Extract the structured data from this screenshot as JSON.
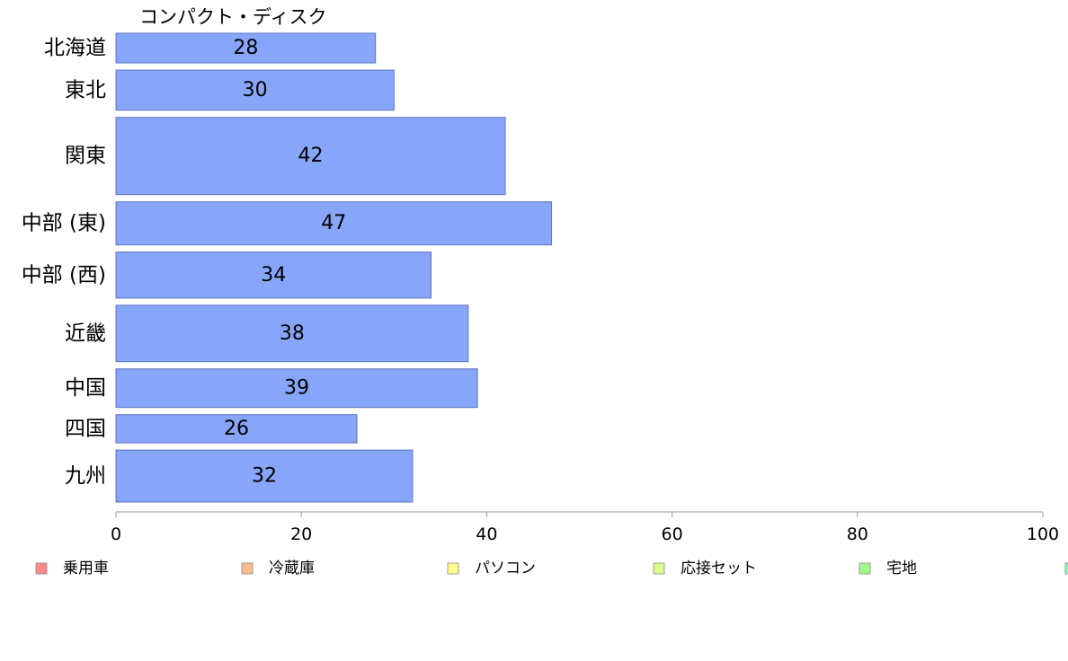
{
  "chart_data": {
    "type": "bar",
    "orientation": "horizontal",
    "title": "コンパクト・ディスク",
    "categories": [
      "北海道",
      "東北",
      "関東",
      "中部 (東)",
      "中部 (西)",
      "近畿",
      "中国",
      "四国",
      "九州"
    ],
    "series": [
      {
        "name": "コンパクト・ディスク",
        "values": [
          28,
          30,
          42,
          47,
          34,
          38,
          39,
          26,
          32
        ],
        "color": "#87a6fa",
        "border_color": "#5e74c0"
      }
    ],
    "band_weights": [
      1,
      1.35,
      2.6,
      1.45,
      1.55,
      1.9,
      1.3,
      0.95,
      1.75
    ],
    "data_labels": [
      "28",
      "30",
      "42",
      "47",
      "34",
      "38",
      "39",
      "26",
      "32"
    ],
    "xlim": [
      0,
      100
    ],
    "xticks": [
      "0",
      "20",
      "40",
      "60",
      "80",
      "100"
    ],
    "grid": false,
    "legend": {
      "placement": "bottom",
      "items": [
        {
          "label": "乗用車",
          "color": "#ff8a8a"
        },
        {
          "label": "冷蔵庫",
          "color": "#ffbb8a"
        },
        {
          "label": "パソコン",
          "color": "#ffff8a"
        },
        {
          "label": "応接セット",
          "color": "#dcff8a"
        },
        {
          "label": "宅地",
          "color": "#9cff8a"
        },
        {
          "label": "",
          "color": "#8affc0"
        }
      ]
    }
  }
}
